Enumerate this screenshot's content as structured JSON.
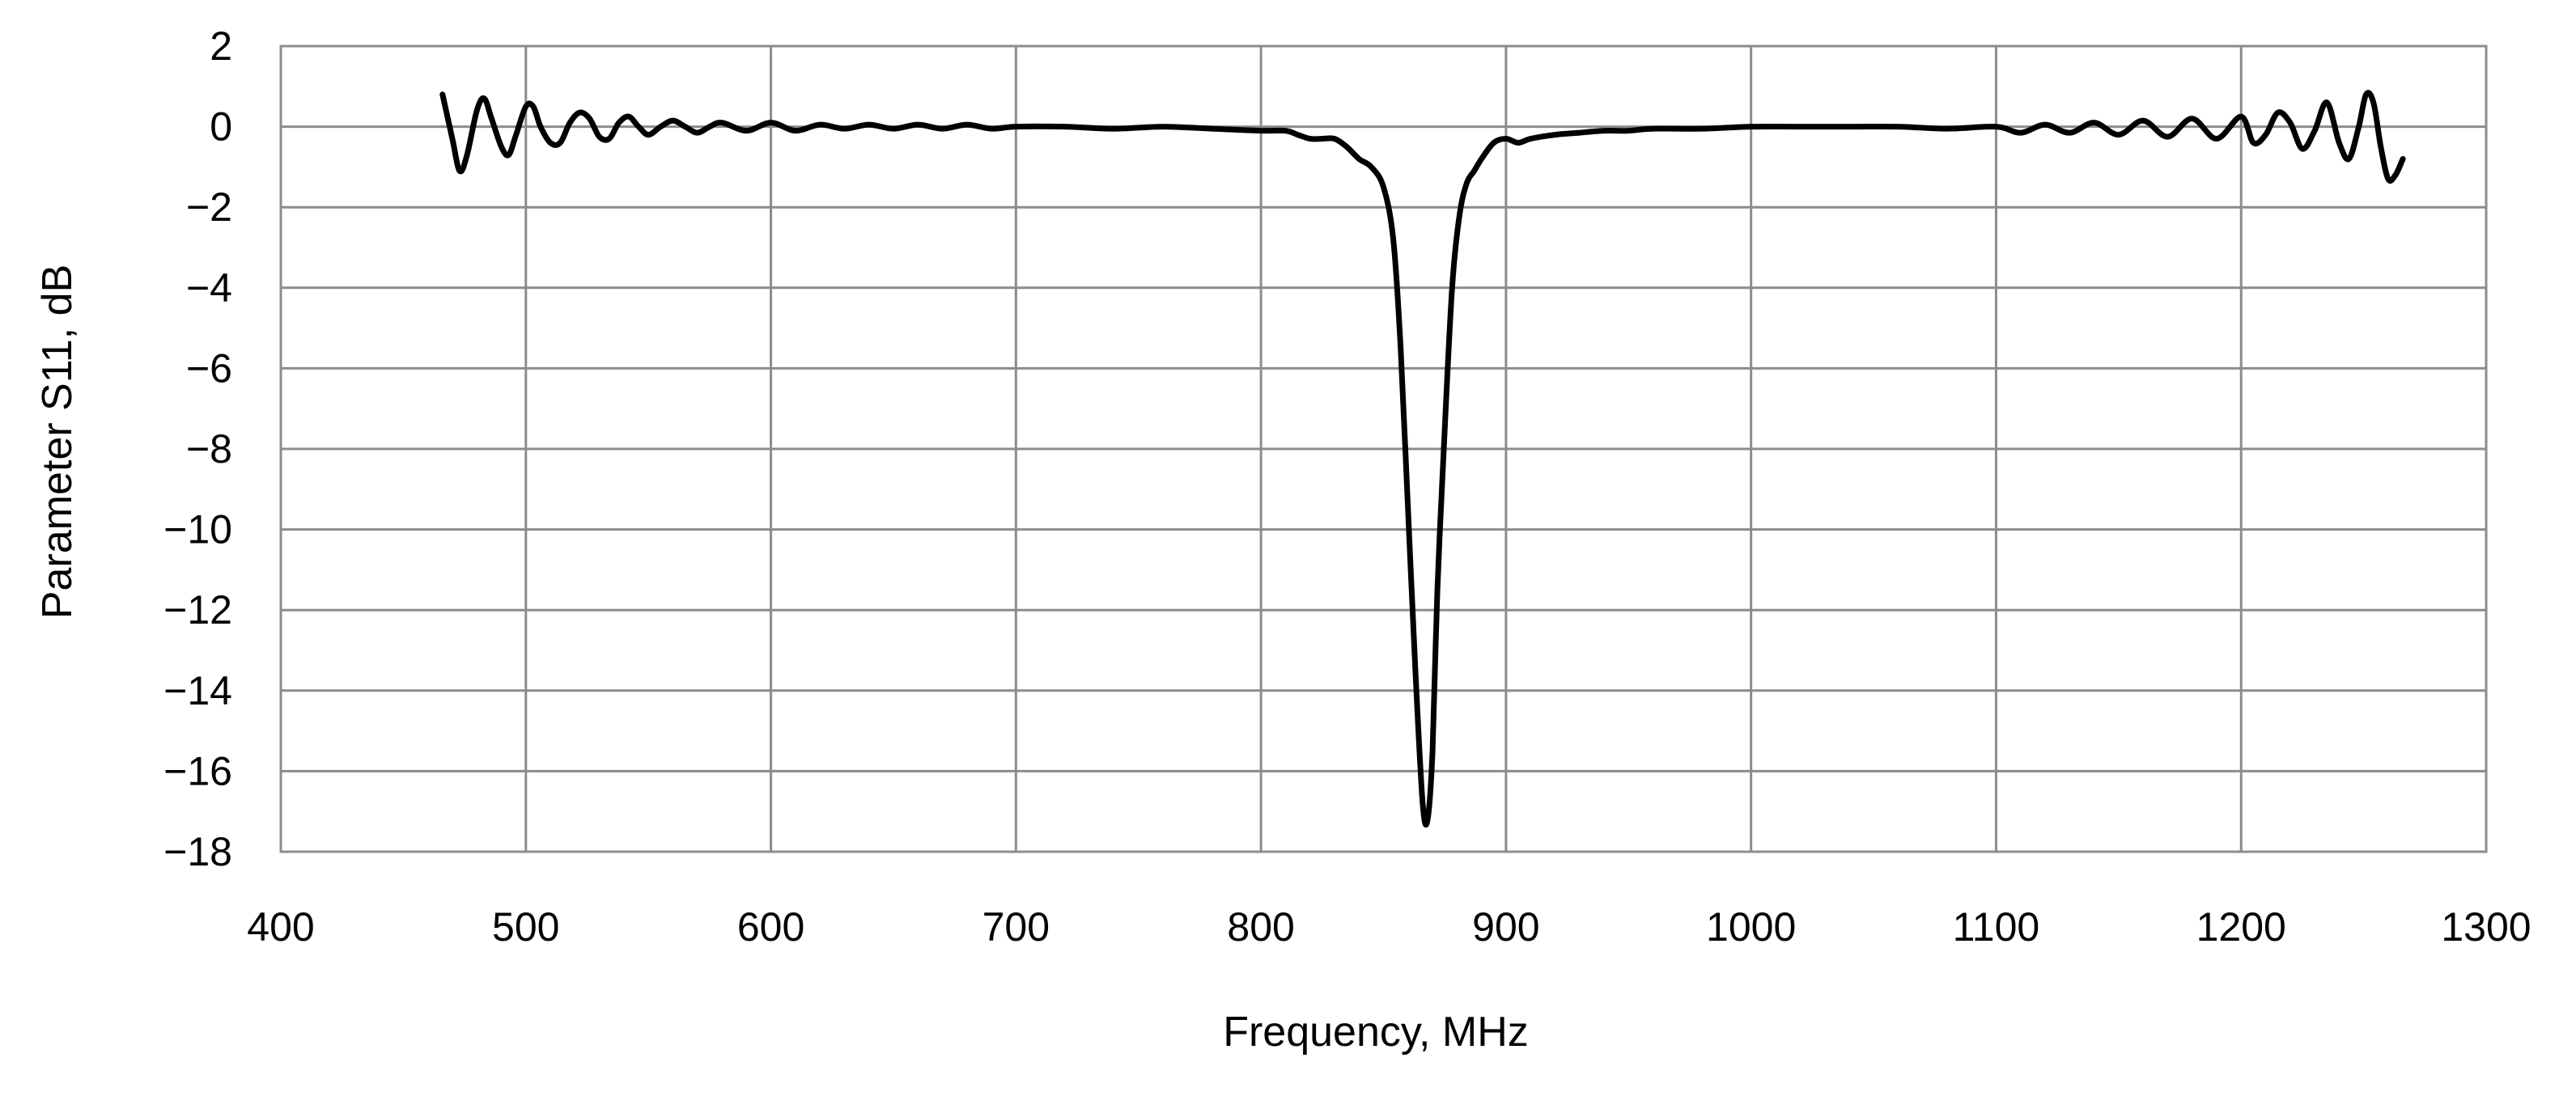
{
  "chart_data": {
    "type": "line",
    "title": "",
    "xlabel": "Frequency, MHz",
    "ylabel": "Parameter S11, dB",
    "xlim": [
      400,
      1300
    ],
    "ylim": [
      -18,
      2
    ],
    "x_ticks": [
      400,
      500,
      600,
      700,
      800,
      900,
      1000,
      1100,
      1200,
      1300
    ],
    "y_ticks": [
      2,
      0,
      -2,
      -4,
      -6,
      -8,
      -10,
      -12,
      -14,
      -16,
      -18
    ],
    "y_tick_labels": [
      "2",
      "0",
      "−2",
      "−4",
      "−6",
      "−8",
      "−10",
      "−12",
      "−14",
      "−16",
      "−18"
    ],
    "grid": true,
    "legend": "none",
    "line_color": "#000000",
    "grid_color": "#8c8c8c",
    "series": [
      {
        "x": [
          466,
          470,
          473,
          476,
          480,
          483,
          486,
          490,
          493,
          496,
          500,
          503,
          506,
          510,
          514,
          518,
          522,
          526,
          530,
          534,
          538,
          542,
          546,
          550,
          555,
          560,
          565,
          570,
          575,
          580,
          590,
          600,
          610,
          620,
          630,
          640,
          650,
          660,
          670,
          680,
          690,
          700,
          720,
          740,
          760,
          780,
          800,
          810,
          815,
          820,
          825,
          830,
          835,
          840,
          845,
          850,
          854,
          857,
          860,
          863,
          866,
          868,
          870,
          872,
          875,
          878,
          881,
          884,
          887,
          890,
          895,
          900,
          905,
          910,
          920,
          930,
          940,
          950,
          960,
          980,
          1000,
          1020,
          1040,
          1060,
          1080,
          1100,
          1110,
          1120,
          1130,
          1140,
          1150,
          1160,
          1170,
          1180,
          1190,
          1200,
          1205,
          1210,
          1215,
          1220,
          1225,
          1230,
          1235,
          1240,
          1244,
          1248,
          1251,
          1254,
          1257,
          1260,
          1263,
          1266
        ],
        "y": [
          0.8,
          -0.3,
          -1.1,
          -0.7,
          0.4,
          0.7,
          0.2,
          -0.5,
          -0.7,
          -0.2,
          0.5,
          0.5,
          0.0,
          -0.4,
          -0.4,
          0.1,
          0.35,
          0.2,
          -0.25,
          -0.3,
          0.1,
          0.25,
          0.0,
          -0.2,
          0.0,
          0.15,
          0.0,
          -0.15,
          0.0,
          0.1,
          -0.1,
          0.1,
          -0.1,
          0.05,
          -0.05,
          0.05,
          -0.05,
          0.05,
          -0.05,
          0.05,
          -0.05,
          0.0,
          0.0,
          -0.05,
          0.0,
          -0.05,
          -0.1,
          -0.1,
          -0.2,
          -0.3,
          -0.3,
          -0.3,
          -0.5,
          -0.8,
          -1.0,
          -1.5,
          -2.8,
          -5.5,
          -9.5,
          -13.5,
          -16.8,
          -17.2,
          -15.5,
          -11.5,
          -7.5,
          -4.0,
          -2.2,
          -1.4,
          -1.1,
          -0.8,
          -0.4,
          -0.3,
          -0.4,
          -0.3,
          -0.2,
          -0.15,
          -0.1,
          -0.1,
          -0.05,
          -0.05,
          0.0,
          0.0,
          0.0,
          0.0,
          -0.05,
          0.0,
          -0.15,
          0.05,
          -0.15,
          0.1,
          -0.2,
          0.15,
          -0.25,
          0.2,
          -0.3,
          0.25,
          -0.4,
          -0.2,
          0.35,
          0.1,
          -0.55,
          -0.1,
          0.6,
          -0.4,
          -0.8,
          0.0,
          0.8,
          0.6,
          -0.5,
          -1.3,
          -1.2,
          -0.8
        ]
      }
    ]
  }
}
